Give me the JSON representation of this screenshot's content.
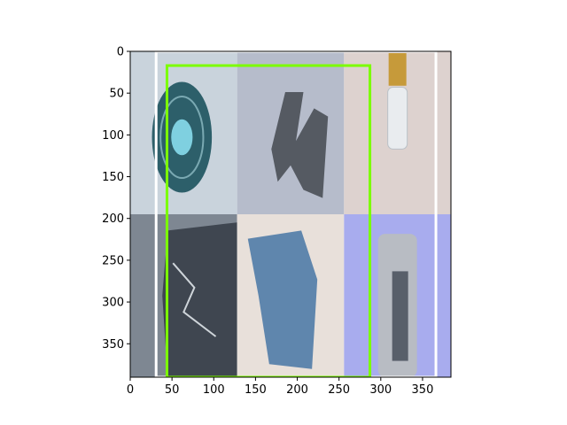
{
  "chart_data": {
    "type": "image",
    "title": "",
    "xlabel": "",
    "ylabel": "",
    "xlim": [
      0,
      384
    ],
    "ylim": [
      390,
      0
    ],
    "xticks": [
      0,
      50,
      100,
      150,
      200,
      250,
      300,
      350
    ],
    "yticks": [
      0,
      50,
      100,
      150,
      200,
      250,
      300,
      350
    ],
    "image_grid": {
      "rows": 2,
      "cols": 3,
      "tiles": [
        {
          "name": "glass-dish",
          "x": [
            0,
            128
          ],
          "y": [
            0,
            195
          ],
          "bg": "#c9d3dc",
          "accent": "#2d5f6a"
        },
        {
          "name": "metal-letter",
          "x": [
            128,
            256
          ],
          "y": [
            0,
            195
          ],
          "bg": "#b6bccb",
          "accent": "#555a62"
        },
        {
          "name": "plastic-bottle",
          "x": [
            256,
            384
          ],
          "y": [
            0,
            195
          ],
          "bg": "#ddd2cf",
          "accent": "#c69a3a"
        },
        {
          "name": "aluminium-foil",
          "x": [
            0,
            128
          ],
          "y": [
            195,
            390
          ],
          "bg": "#7e8792",
          "accent": "#3f4650"
        },
        {
          "name": "blue-cardboard",
          "x": [
            128,
            256
          ],
          "y": [
            195,
            390
          ],
          "bg": "#e8e0da",
          "accent": "#5f86ad"
        },
        {
          "name": "beverage-can",
          "x": [
            256,
            384
          ],
          "y": [
            195,
            390
          ],
          "bg": "#a8acee",
          "accent": "#585f6a"
        }
      ]
    },
    "boxes": [
      {
        "color": "#ffffff",
        "x": [
          31,
          366
        ],
        "y": [
          0,
          390
        ]
      },
      {
        "color": "#7cfc00",
        "x": [
          44,
          287
        ],
        "y": [
          17,
          390
        ]
      }
    ]
  }
}
